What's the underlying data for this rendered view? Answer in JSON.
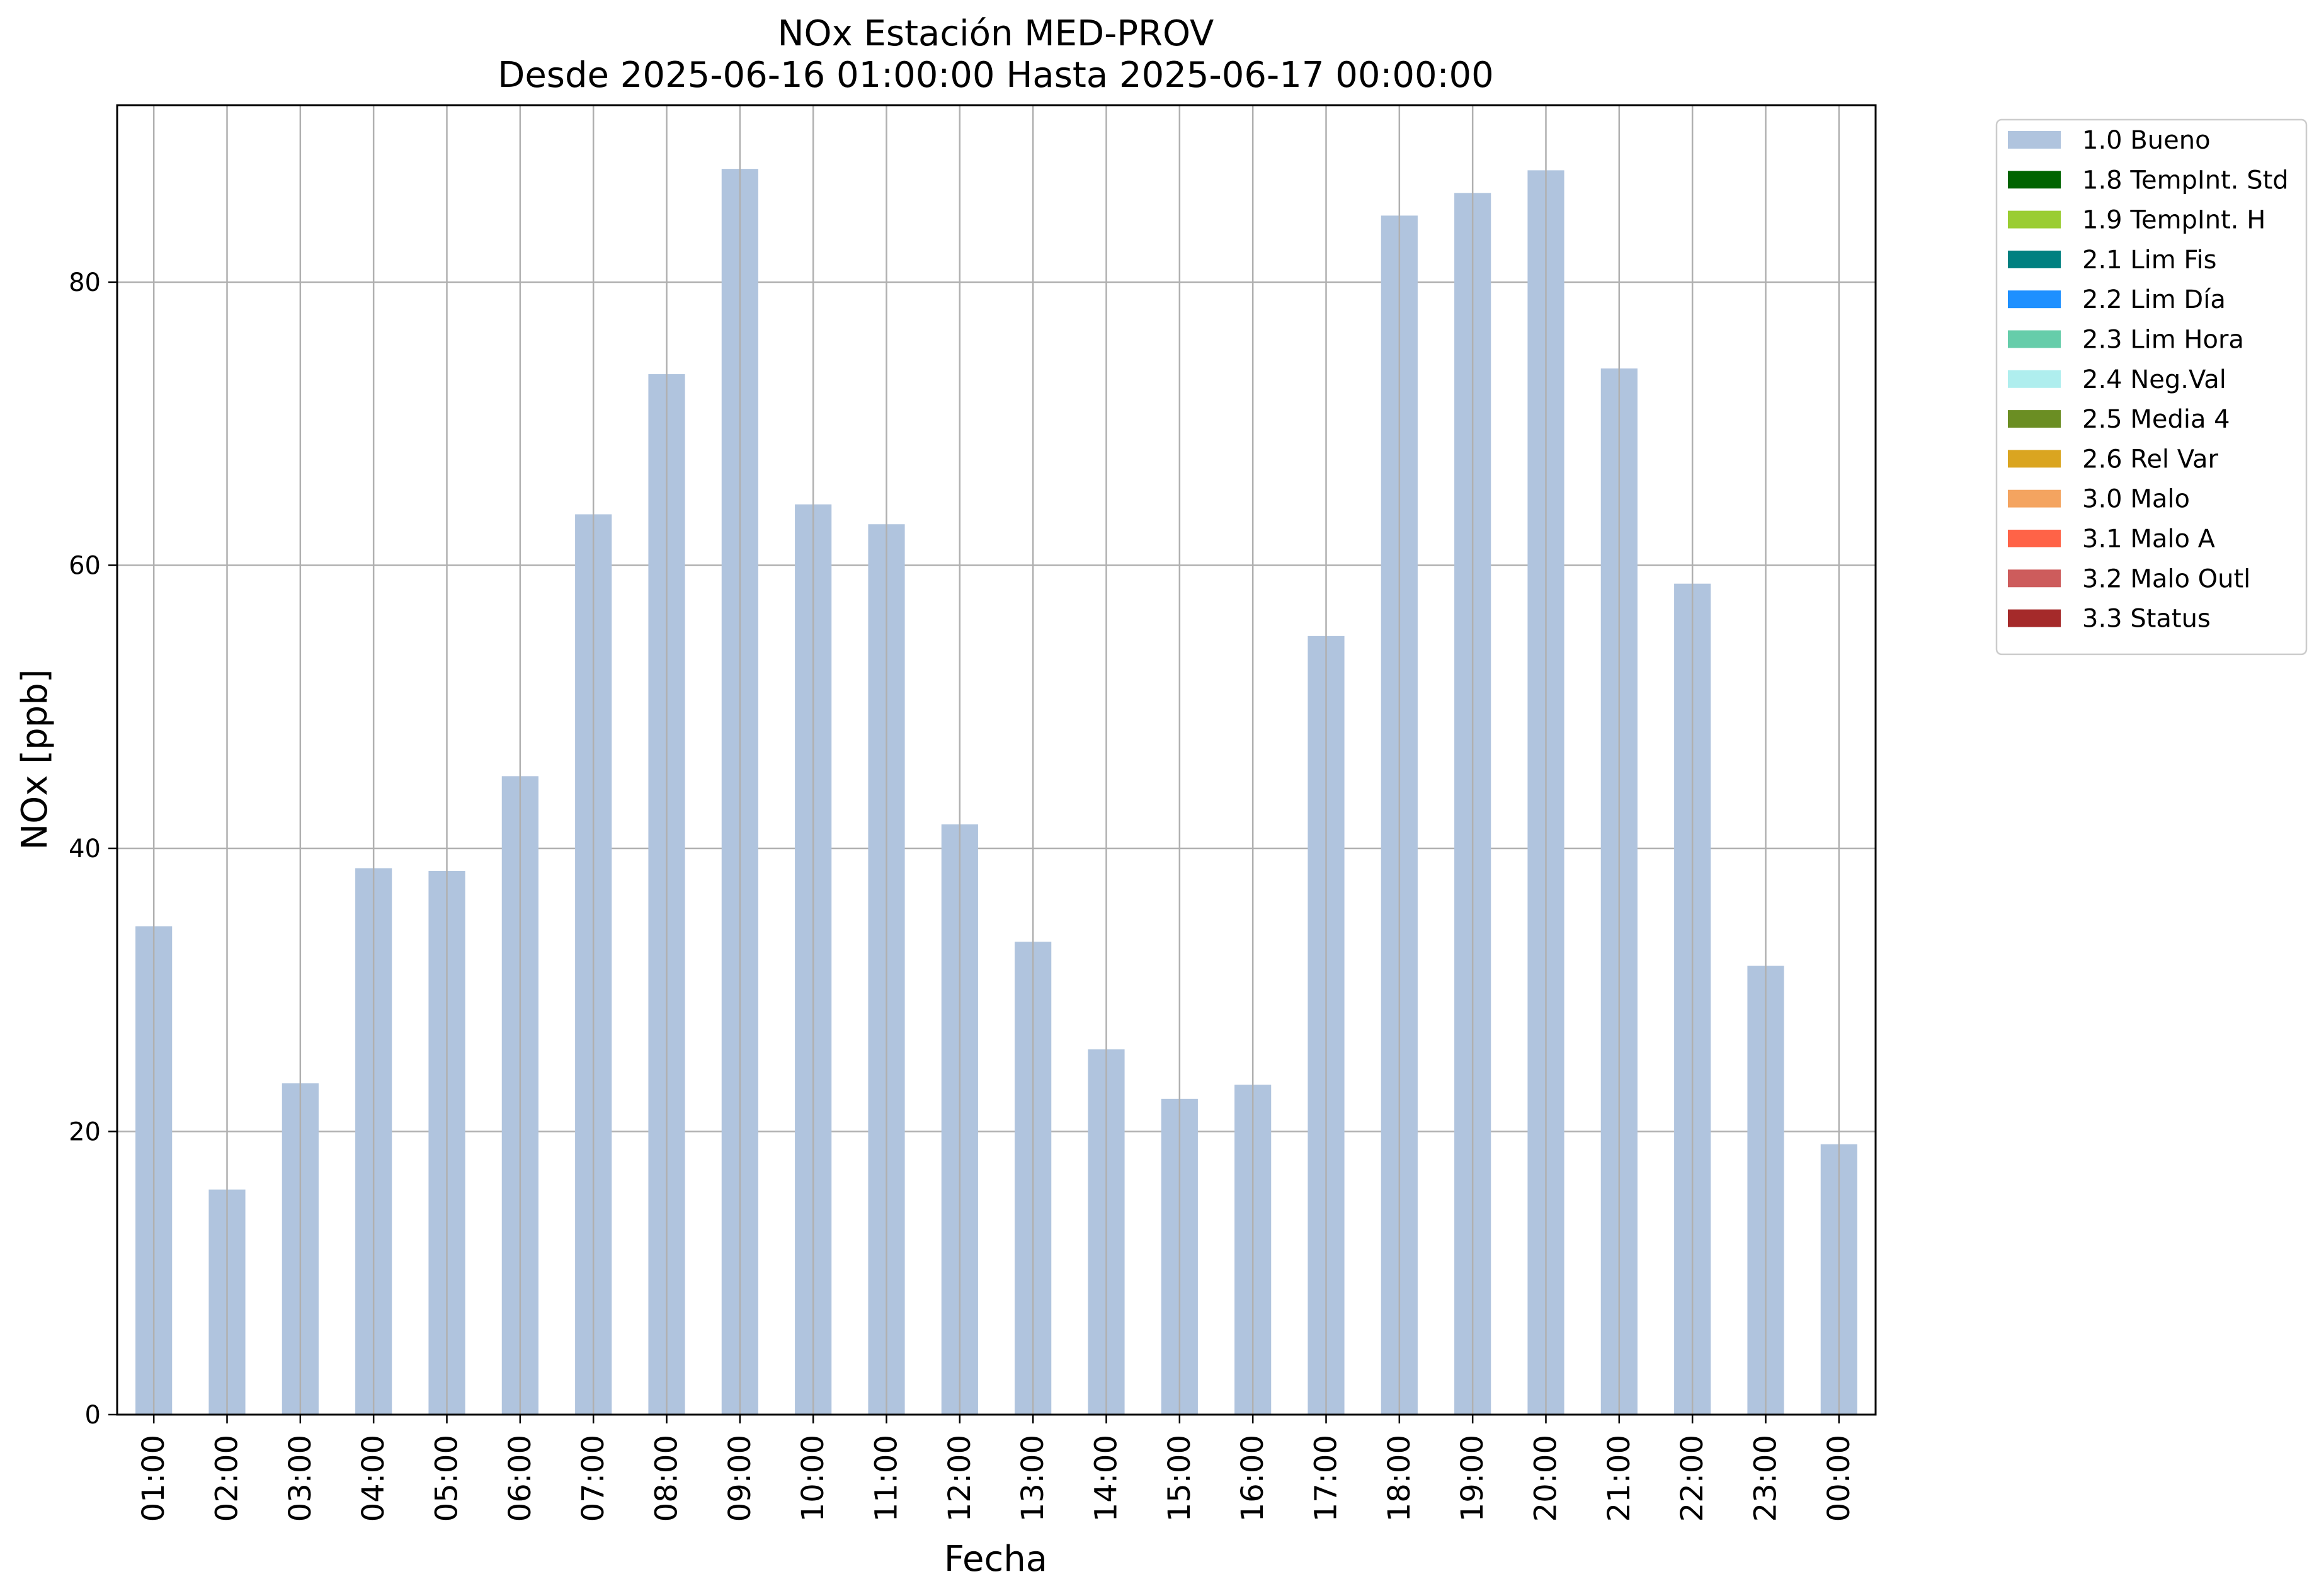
{
  "chart_data": {
    "type": "bar",
    "title": "NOx Estación MED-PROV",
    "subtitle": "Desde 2025-06-16 01:00:00 Hasta 2025-06-17 00:00:00",
    "xlabel": "Fecha",
    "ylabel": "NOx [ppb]",
    "ylim": [
      0,
      92.5
    ],
    "yticks": [
      0,
      20,
      40,
      60,
      80
    ],
    "grid": true,
    "legend_position": "outside-top-right",
    "categories": [
      "01:00",
      "02:00",
      "03:00",
      "04:00",
      "05:00",
      "06:00",
      "07:00",
      "08:00",
      "09:00",
      "10:00",
      "11:00",
      "12:00",
      "13:00",
      "14:00",
      "15:00",
      "16:00",
      "17:00",
      "18:00",
      "19:00",
      "20:00",
      "21:00",
      "22:00",
      "23:00",
      "00:00"
    ],
    "series": [
      {
        "name": "1.0 Bueno",
        "color": "#b0c4de",
        "values": [
          34.5,
          15.9,
          23.4,
          38.6,
          38.4,
          45.1,
          63.6,
          73.5,
          88.0,
          64.3,
          62.9,
          41.7,
          33.4,
          25.8,
          22.3,
          23.3,
          55.0,
          84.7,
          86.3,
          87.9,
          73.9,
          58.7,
          31.7,
          19.1
        ]
      }
    ],
    "legend": [
      {
        "label": "1.0 Bueno",
        "color": "#b0c4de"
      },
      {
        "label": "1.8 TempInt. Std",
        "color": "#006400"
      },
      {
        "label": "1.9 TempInt. H",
        "color": "#9acd32"
      },
      {
        "label": "2.1 Lim Fis",
        "color": "#008080"
      },
      {
        "label": "2.2 Lim Día",
        "color": "#1e90ff"
      },
      {
        "label": "2.3 Lim Hora",
        "color": "#66cdaa"
      },
      {
        "label": "2.4 Neg.Val",
        "color": "#afeeee"
      },
      {
        "label": "2.5 Media 4",
        "color": "#6b8e23"
      },
      {
        "label": "2.6 Rel Var",
        "color": "#daa520"
      },
      {
        "label": "3.0 Malo",
        "color": "#f4a460"
      },
      {
        "label": "3.1 Malo A",
        "color": "#ff6347"
      },
      {
        "label": "3.2 Malo Outl",
        "color": "#cd5c5c"
      },
      {
        "label": "3.3 Status",
        "color": "#a52a2a"
      }
    ]
  }
}
